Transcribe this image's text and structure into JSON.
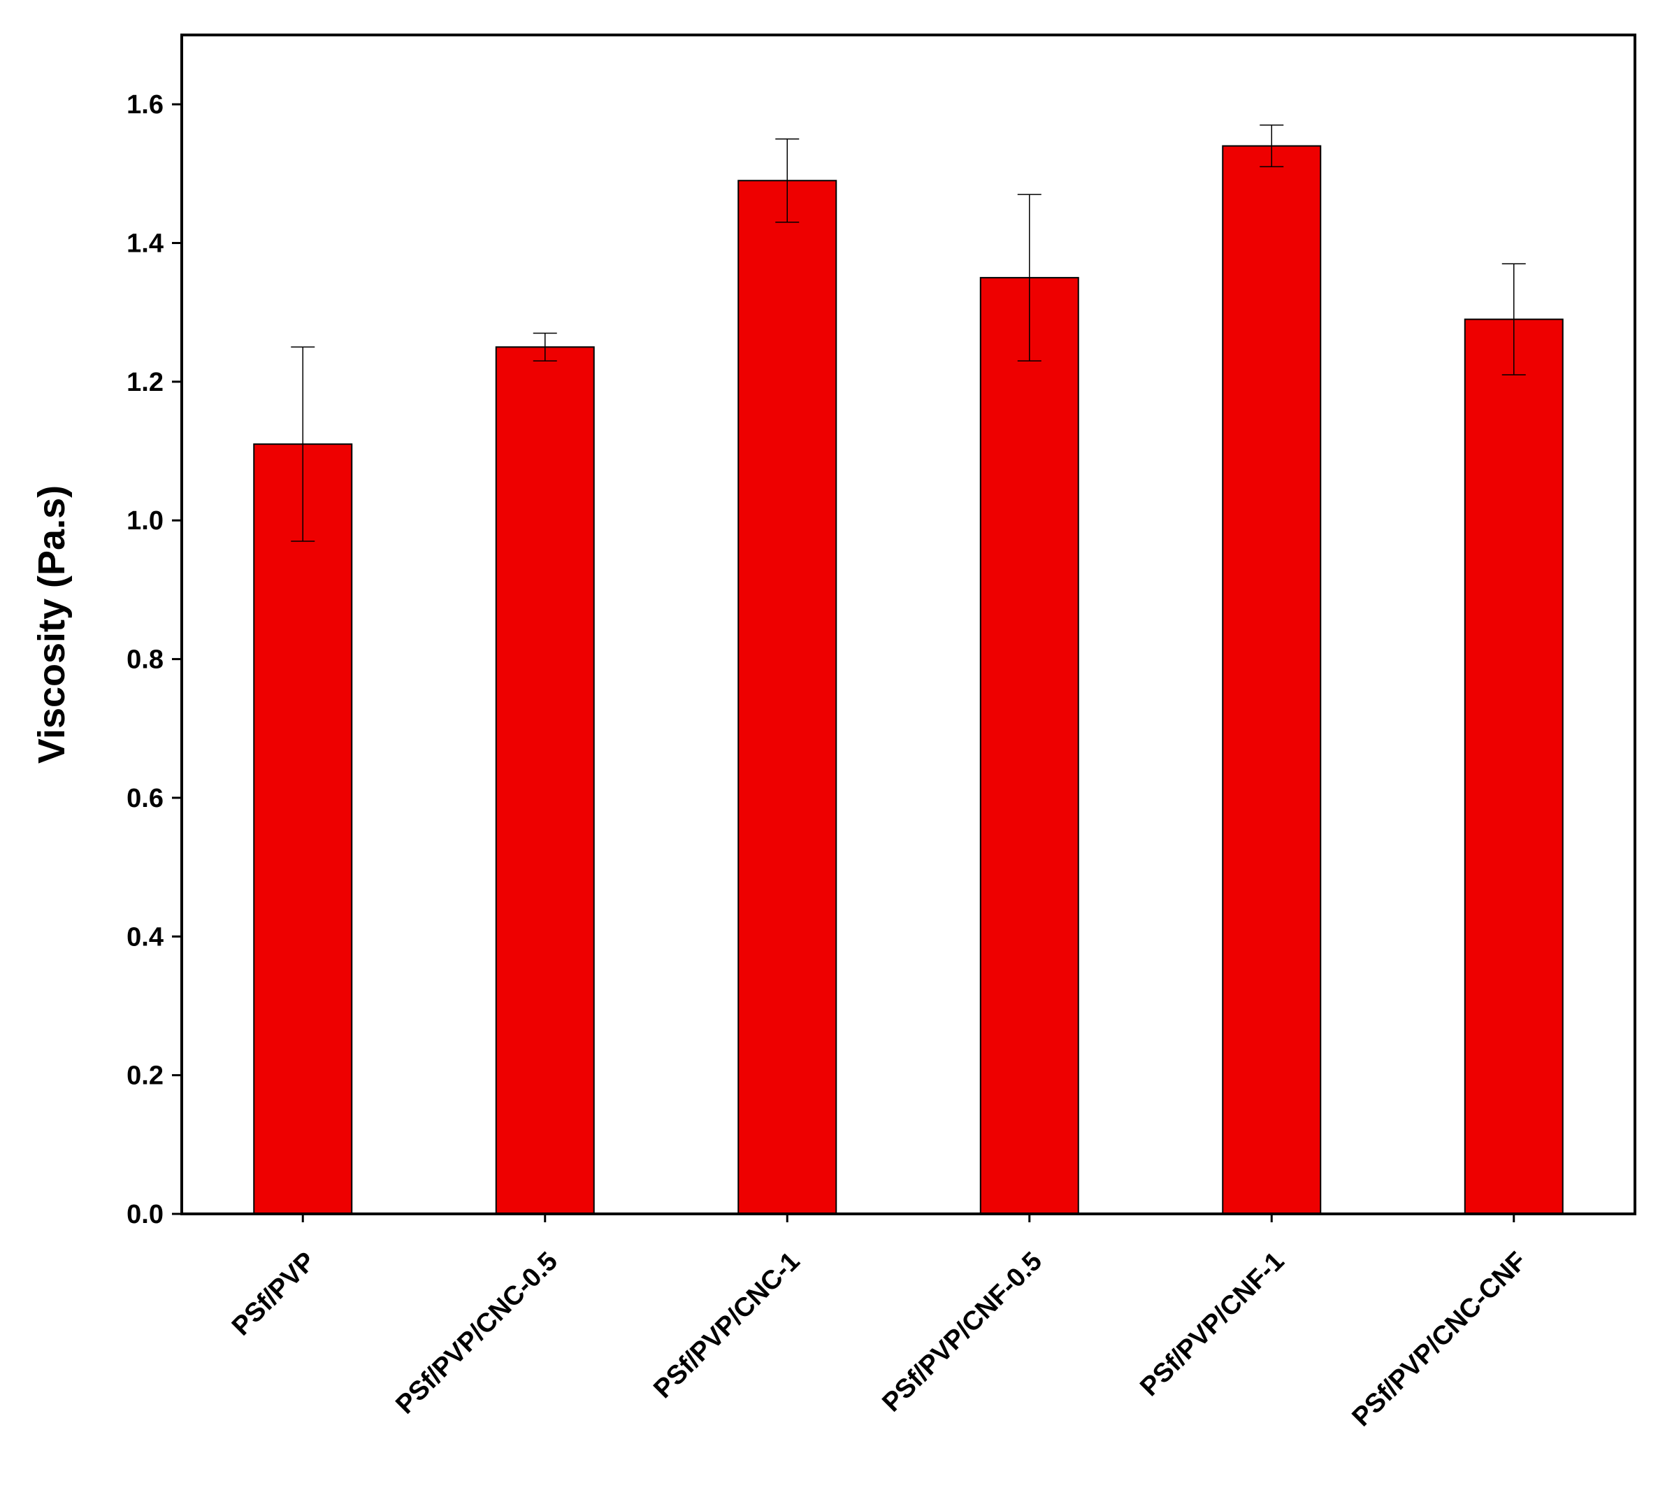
{
  "chart_data": {
    "type": "bar",
    "title": "",
    "xlabel": "",
    "ylabel": "Viscosity (Pa.s)",
    "ylim": [
      0,
      1.7
    ],
    "yticks": [
      "0.0",
      "0.2",
      "0.4",
      "0.6",
      "0.8",
      "1.0",
      "1.2",
      "1.4",
      "1.6"
    ],
    "categories": [
      "PSf/PVP",
      "PSf/PVP/CNC-0.5",
      "PSf/PVP/CNC-1",
      "PSf/PVP/CNF-0.5",
      "PSf/PVP/CNF-1",
      "PSf/PVP/CNC-CNF"
    ],
    "values": [
      1.11,
      1.25,
      1.49,
      1.35,
      1.54,
      1.29
    ],
    "errors": [
      0.14,
      0.02,
      0.06,
      0.12,
      0.03,
      0.08
    ],
    "bar_color": "#ee0000",
    "grid": false,
    "legend": "none"
  }
}
